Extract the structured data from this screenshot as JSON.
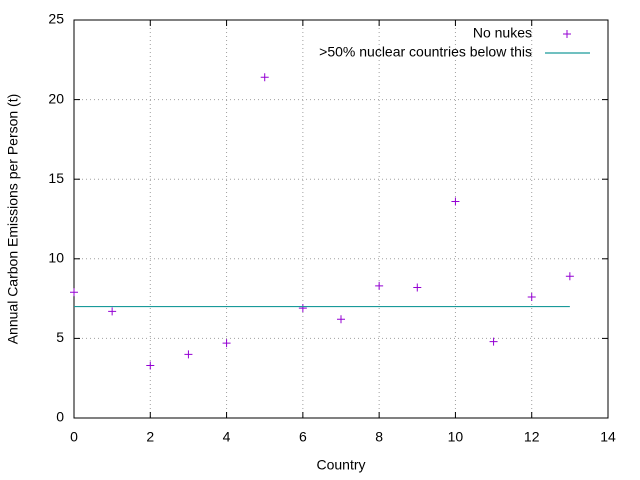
{
  "chart_data": {
    "type": "scatter",
    "xlabel": "Country",
    "ylabel": "Annual Carbon Emissions per Person (t)",
    "xlim": [
      0,
      14
    ],
    "ylim": [
      0,
      25
    ],
    "xticks": [
      0,
      2,
      4,
      6,
      8,
      10,
      12,
      14
    ],
    "yticks": [
      0,
      5,
      10,
      15,
      20,
      25
    ],
    "grid": true,
    "legend": "upper right",
    "series": [
      {
        "name": "No nukes",
        "type": "scatter",
        "color": "#9400d3",
        "x": [
          0,
          1,
          2,
          3,
          4,
          5,
          6,
          7,
          8,
          9,
          10,
          11,
          12,
          13
        ],
        "values": [
          7.9,
          6.7,
          3.3,
          4.0,
          4.7,
          21.4,
          6.9,
          6.2,
          8.3,
          8.2,
          13.6,
          4.8,
          7.6,
          8.9
        ]
      },
      {
        "name": ">50% nuclear countries below this",
        "type": "line",
        "color": "#1a9a9a",
        "x": [
          0,
          13
        ],
        "values": [
          7,
          7
        ]
      }
    ]
  }
}
